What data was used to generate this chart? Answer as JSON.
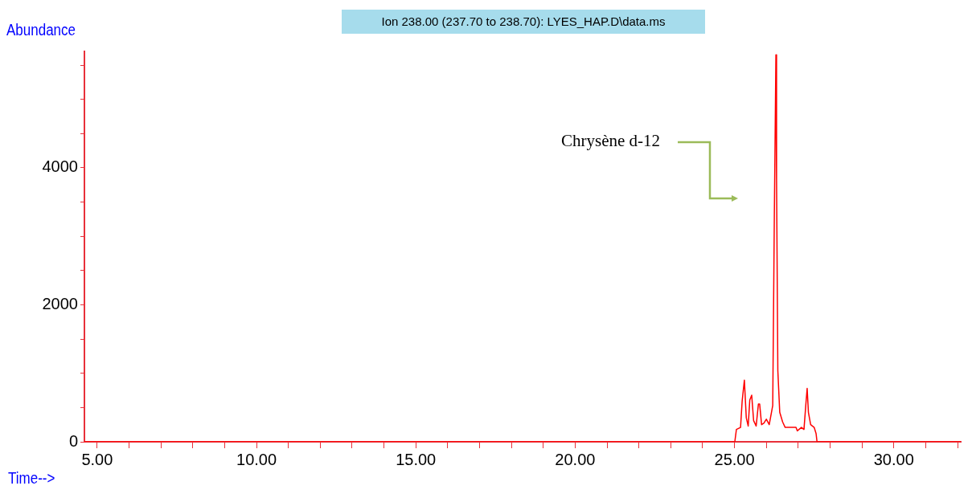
{
  "chart_data": {
    "type": "line",
    "title": "Ion 238.00 (237.70 to 238.70): LYES_HAP.D\\data.ms",
    "xlabel": "Time-->",
    "ylabel": "Abundance",
    "annotations": [
      "Chrysène d-12"
    ],
    "xlim": [
      4.6,
      32.1
    ],
    "xticks": [
      {
        "value": 5,
        "label": "5.00"
      },
      {
        "value": 6,
        "label": null
      },
      {
        "value": 7,
        "label": null
      },
      {
        "value": 8,
        "label": null
      },
      {
        "value": 9,
        "label": null
      },
      {
        "value": 10,
        "label": "10.00"
      },
      {
        "value": 11,
        "label": null
      },
      {
        "value": 12,
        "label": null
      },
      {
        "value": 13,
        "label": null
      },
      {
        "value": 14,
        "label": null
      },
      {
        "value": 15,
        "label": "15.00"
      },
      {
        "value": 16,
        "label": null
      },
      {
        "value": 17,
        "label": null
      },
      {
        "value": 18,
        "label": null
      },
      {
        "value": 19,
        "label": null
      },
      {
        "value": 20,
        "label": "20.00"
      },
      {
        "value": 21,
        "label": null
      },
      {
        "value": 22,
        "label": null
      },
      {
        "value": 23,
        "label": null
      },
      {
        "value": 24,
        "label": null
      },
      {
        "value": 25,
        "label": "25.00"
      },
      {
        "value": 26,
        "label": null
      },
      {
        "value": 27,
        "label": null
      },
      {
        "value": 28,
        "label": null
      },
      {
        "value": 29,
        "label": null
      },
      {
        "value": 30,
        "label": "30.00"
      },
      {
        "value": 31,
        "label": null
      },
      {
        "value": 32,
        "label": null
      }
    ],
    "ylim": [
      0,
      5700
    ],
    "yticks": [
      0,
      {
        "value": 500,
        "label": null
      },
      {
        "value": 1000,
        "label": null
      },
      {
        "value": 1500,
        "label": null
      },
      2000,
      {
        "value": 2500,
        "label": null
      },
      {
        "value": 3000,
        "label": null
      },
      {
        "value": 3500,
        "label": null
      },
      4000,
      {
        "value": 4500,
        "label": null
      },
      {
        "value": 5000,
        "label": null
      },
      {
        "value": 5500,
        "label": null
      }
    ],
    "grid": false,
    "legend": false,
    "marker": "none",
    "line_style": "solid",
    "series": [
      {
        "color": "#ff0000",
        "x": [
          4.6,
          25.01,
          25.06,
          25.19,
          25.24,
          25.31,
          25.37,
          25.43,
          25.48,
          25.54,
          25.6,
          25.68,
          25.75,
          25.79,
          25.85,
          25.92,
          26.0,
          26.09,
          26.2,
          26.25,
          26.3,
          26.32,
          26.36,
          26.42,
          26.51,
          26.59,
          26.93,
          26.97,
          27.1,
          27.18,
          27.24,
          27.28,
          27.32,
          27.39,
          27.5,
          27.56,
          27.59,
          32.1
        ],
        "values": [
          0,
          0,
          180,
          210,
          590,
          900,
          350,
          230,
          610,
          680,
          310,
          230,
          550,
          550,
          250,
          270,
          330,
          250,
          530,
          3280,
          5650,
          3830,
          1040,
          430,
          290,
          210,
          210,
          160,
          210,
          180,
          550,
          780,
          430,
          250,
          210,
          120,
          0,
          0
        ]
      }
    ]
  }
}
